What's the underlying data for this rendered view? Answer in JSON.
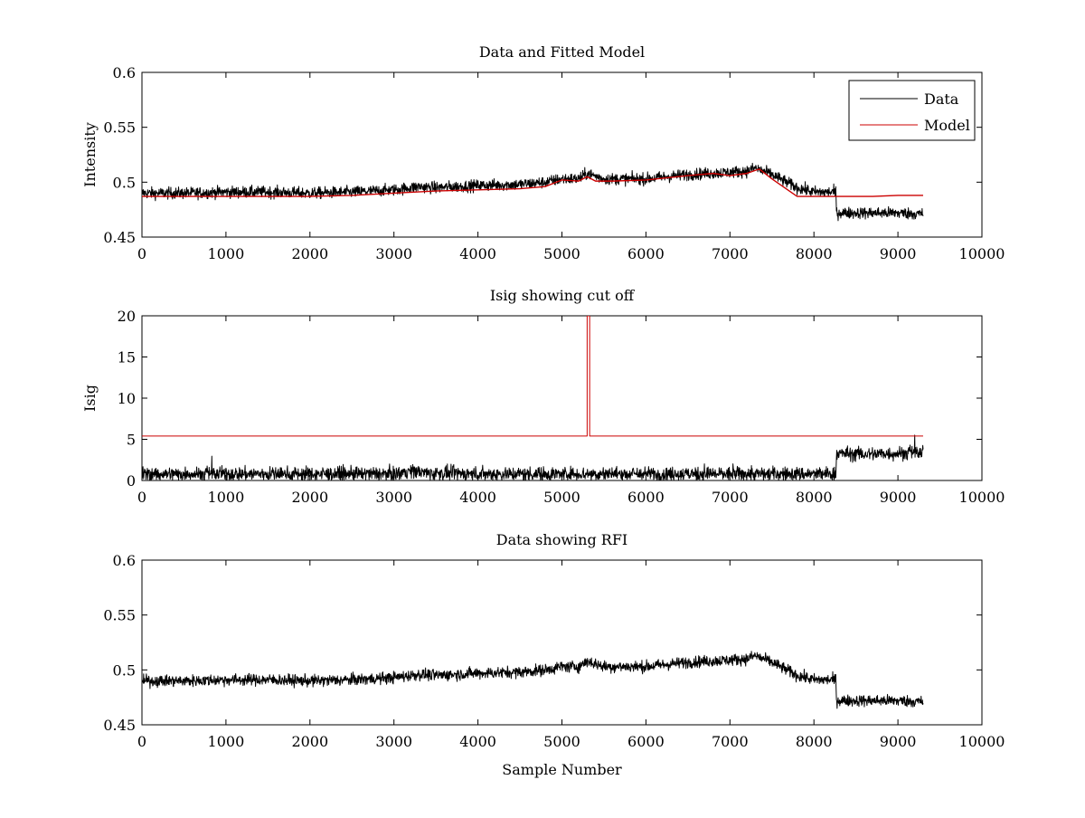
{
  "figure": {
    "background": "#ffffff"
  },
  "chart_data": [
    {
      "type": "line",
      "title": "Data and Fitted Model",
      "xlabel": "",
      "ylabel": "Intensity",
      "xlim": [
        0,
        10000
      ],
      "ylim": [
        0.45,
        0.6
      ],
      "xticks": [
        "0",
        "1000",
        "2000",
        "3000",
        "4000",
        "5000",
        "6000",
        "7000",
        "8000",
        "9000",
        "10000"
      ],
      "yticks": [
        "0.45",
        "0.5",
        "0.55",
        "0.6"
      ],
      "legend": {
        "placement": "top-right",
        "entries": [
          "Data",
          "Model"
        ]
      },
      "series": [
        {
          "name": "Data",
          "color": "#000000",
          "style": "noisy",
          "x": [
            0,
            500,
            1000,
            1500,
            2000,
            2500,
            3000,
            3300,
            3500,
            4000,
            4500,
            4800,
            5000,
            5200,
            5300,
            5500,
            6000,
            6500,
            7000,
            7200,
            7300,
            7500,
            7800,
            8000,
            8260,
            8270,
            8500,
            9000,
            9300
          ],
          "y": [
            0.49,
            0.49,
            0.491,
            0.491,
            0.49,
            0.491,
            0.493,
            0.496,
            0.495,
            0.497,
            0.498,
            0.5,
            0.503,
            0.503,
            0.508,
            0.503,
            0.503,
            0.507,
            0.509,
            0.51,
            0.513,
            0.507,
            0.495,
            0.491,
            0.491,
            0.472,
            0.472,
            0.472,
            0.471
          ],
          "noise_amplitude": 0.006
        },
        {
          "name": "Model",
          "color": "#cc0000",
          "style": "line",
          "x": [
            0,
            500,
            1000,
            1500,
            2000,
            2500,
            3000,
            3500,
            4000,
            4500,
            4800,
            5000,
            5200,
            5300,
            5400,
            5600,
            6000,
            6500,
            6800,
            7000,
            7200,
            7350,
            7500,
            7800,
            8260,
            8700,
            9000,
            9300
          ],
          "y": [
            0.487,
            0.487,
            0.487,
            0.487,
            0.487,
            0.488,
            0.49,
            0.492,
            0.493,
            0.494,
            0.496,
            0.502,
            0.501,
            0.505,
            0.501,
            0.501,
            0.502,
            0.506,
            0.508,
            0.506,
            0.508,
            0.512,
            0.503,
            0.487,
            0.487,
            0.487,
            0.488,
            0.488
          ]
        }
      ]
    },
    {
      "type": "line",
      "title": "Isig showing cut off",
      "xlabel": "",
      "ylabel": "Isig",
      "xlim": [
        0,
        10000
      ],
      "ylim": [
        0,
        20
      ],
      "xticks": [
        "0",
        "1000",
        "2000",
        "3000",
        "4000",
        "5000",
        "6000",
        "7000",
        "8000",
        "9000",
        "10000"
      ],
      "yticks": [
        "0",
        "5",
        "10",
        "15",
        "20"
      ],
      "series": [
        {
          "color": "#000000",
          "style": "noisy-positive",
          "x": [
            0,
            1000,
            2000,
            3000,
            3200,
            3400,
            4000,
            5000,
            6000,
            7000,
            8000,
            8260,
            8270,
            8600,
            9000,
            9300
          ],
          "y": [
            0.8,
            0.8,
            0.8,
            0.8,
            1.2,
            0.9,
            0.8,
            0.8,
            0.8,
            0.8,
            0.8,
            0.8,
            3.3,
            3.2,
            3.3,
            3.4
          ],
          "noise_amplitude": 0.9
        },
        {
          "color": "#cc0000",
          "style": "line",
          "x": [
            0,
            5300,
            5300,
            5330,
            5330,
            9300
          ],
          "y": [
            5.4,
            5.4,
            20,
            20,
            5.4,
            5.4
          ]
        }
      ]
    },
    {
      "type": "line",
      "title": "Data showing RFI",
      "xlabel": "Sample Number",
      "ylabel": "",
      "xlim": [
        0,
        10000
      ],
      "ylim": [
        0.45,
        0.6
      ],
      "xticks": [
        "0",
        "1000",
        "2000",
        "3000",
        "4000",
        "5000",
        "6000",
        "7000",
        "8000",
        "9000",
        "10000"
      ],
      "yticks": [
        "0.45",
        "0.5",
        "0.55",
        "0.6"
      ],
      "series": [
        {
          "color": "#000000",
          "style": "noisy",
          "x": [
            0,
            500,
            1000,
            1500,
            2000,
            2500,
            3000,
            3300,
            3500,
            4000,
            4500,
            4800,
            5000,
            5200,
            5300,
            5500,
            6000,
            6500,
            7000,
            7200,
            7300,
            7500,
            7800,
            8000,
            8260,
            8270,
            8500,
            9000,
            9300
          ],
          "y": [
            0.49,
            0.49,
            0.491,
            0.491,
            0.49,
            0.491,
            0.493,
            0.496,
            0.495,
            0.497,
            0.498,
            0.5,
            0.503,
            0.503,
            0.508,
            0.503,
            0.503,
            0.507,
            0.509,
            0.51,
            0.513,
            0.507,
            0.495,
            0.491,
            0.491,
            0.472,
            0.472,
            0.472,
            0.471
          ],
          "noise_amplitude": 0.006
        }
      ]
    }
  ]
}
